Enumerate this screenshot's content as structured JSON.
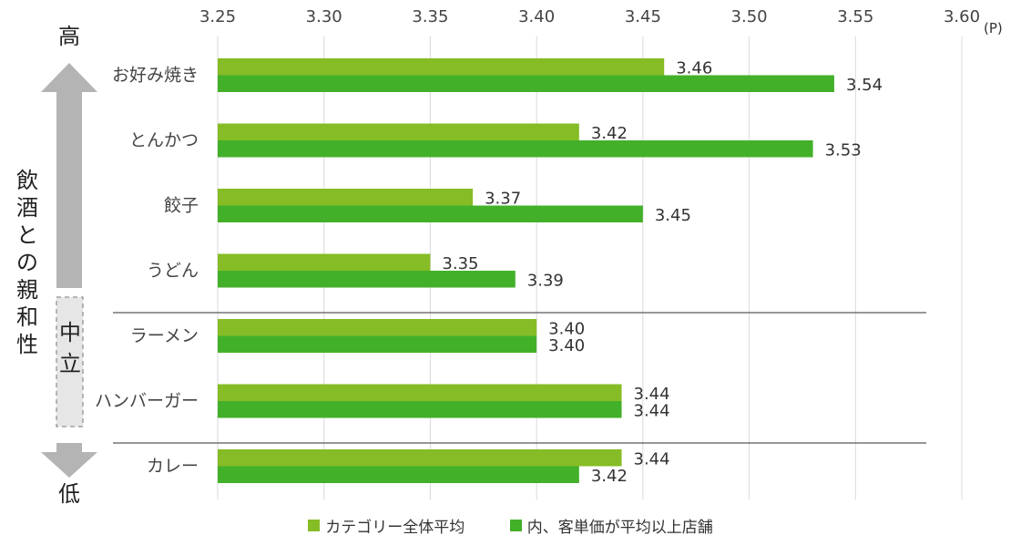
{
  "chart_data": {
    "type": "bar",
    "orientation": "horizontal",
    "categories": [
      "お好み焼き",
      "とんかつ",
      "餃子",
      "うどん",
      "ラーメン",
      "ハンバーガー",
      "カレー"
    ],
    "series": [
      {
        "name": "カテゴリー全体平均",
        "values": [
          3.46,
          3.42,
          3.37,
          3.35,
          3.4,
          3.44,
          3.44
        ],
        "color": "#86bc25"
      },
      {
        "name": "内、客単価が平均以上店舗",
        "values": [
          3.54,
          3.53,
          3.45,
          3.39,
          3.4,
          3.44,
          3.42
        ],
        "color": "#43b02a"
      }
    ],
    "data_labels": [
      [
        "3.46",
        "3.42",
        "3.37",
        "3.35",
        "3.40",
        "3.44",
        "3.44"
      ],
      [
        "3.54",
        "3.53",
        "3.45",
        "3.39",
        "3.40",
        "3.44",
        "3.42"
      ]
    ],
    "xlim": [
      3.25,
      3.6
    ],
    "xticks": [
      3.25,
      3.3,
      3.35,
      3.4,
      3.45,
      3.5,
      3.55,
      3.6
    ],
    "xtick_labels": [
      "3.25",
      "3.30",
      "3.35",
      "3.40",
      "3.45",
      "3.50",
      "3.55",
      "3.60"
    ],
    "x_unit": "(P)",
    "grid": true,
    "legend_position": "bottom",
    "group_separators_after": [
      "うどん",
      "ハンバーガー"
    ],
    "y_axis_title": "飲酒との親和性",
    "scale_labels": {
      "high": "高",
      "middle": "中立",
      "low": "低"
    }
  }
}
